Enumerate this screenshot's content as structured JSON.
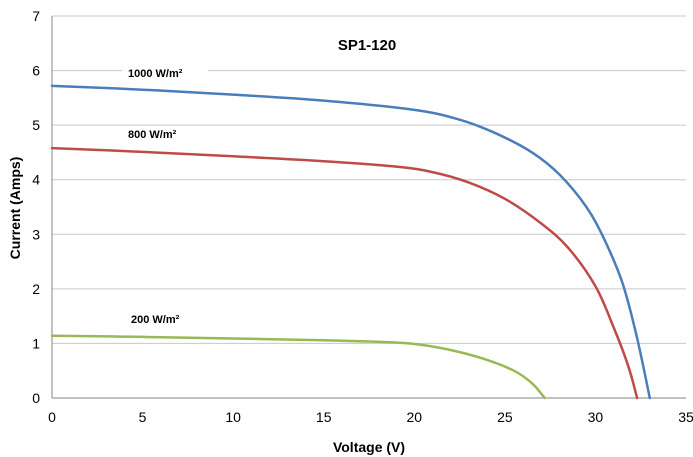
{
  "chart_data": {
    "type": "line",
    "title": "SP1-120",
    "xlabel": "Voltage (V)",
    "ylabel": "Current (Amps)",
    "xlim": [
      0,
      35
    ],
    "ylim": [
      0,
      7
    ],
    "xticks": [
      "0",
      "5",
      "10",
      "15",
      "20",
      "25",
      "30",
      "35"
    ],
    "yticks": [
      "0",
      "1",
      "2",
      "3",
      "4",
      "5",
      "6",
      "7"
    ],
    "grid": "horizontal",
    "series": [
      {
        "name": "1000 W/m²",
        "color": "#4a7ebb",
        "points": [
          [
            0,
            5.72
          ],
          [
            5,
            5.65
          ],
          [
            10,
            5.56
          ],
          [
            15,
            5.45
          ],
          [
            20,
            5.28
          ],
          [
            22.5,
            5.1
          ],
          [
            24.5,
            4.85
          ],
          [
            26.5,
            4.5
          ],
          [
            28,
            4.1
          ],
          [
            29.5,
            3.5
          ],
          [
            30.5,
            2.9
          ],
          [
            31.5,
            2.1
          ],
          [
            32.3,
            1.1
          ],
          [
            33,
            0
          ]
        ]
      },
      {
        "name": "800 W/m²",
        "color": "#be4b48",
        "points": [
          [
            0,
            4.58
          ],
          [
            5,
            4.51
          ],
          [
            10,
            4.43
          ],
          [
            15,
            4.34
          ],
          [
            19,
            4.24
          ],
          [
            21,
            4.14
          ],
          [
            23,
            3.95
          ],
          [
            25,
            3.65
          ],
          [
            27,
            3.2
          ],
          [
            28.5,
            2.75
          ],
          [
            30,
            2.05
          ],
          [
            31,
            1.3
          ],
          [
            31.8,
            0.6
          ],
          [
            32.3,
            0
          ]
        ]
      },
      {
        "name": "200 W/m²",
        "color": "#98b954",
        "points": [
          [
            0,
            1.14
          ],
          [
            5,
            1.12
          ],
          [
            10,
            1.09
          ],
          [
            15,
            1.06
          ],
          [
            18,
            1.03
          ],
          [
            20,
            0.99
          ],
          [
            22,
            0.88
          ],
          [
            24,
            0.7
          ],
          [
            25.5,
            0.5
          ],
          [
            26.5,
            0.27
          ],
          [
            27.2,
            0
          ]
        ]
      }
    ]
  }
}
